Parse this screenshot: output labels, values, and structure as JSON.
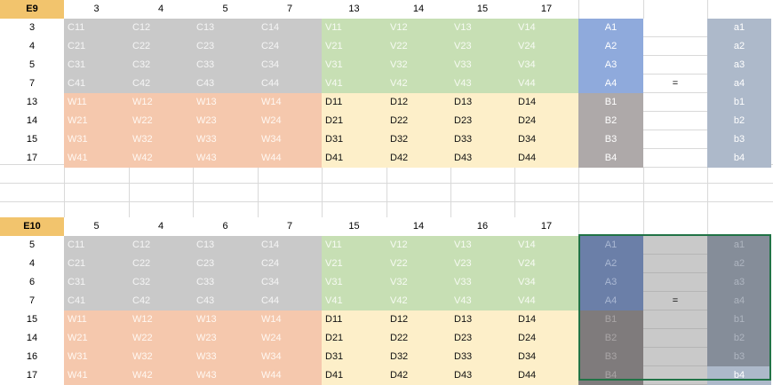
{
  "block1": {
    "corner": "E9",
    "col_headers": [
      "3",
      "4",
      "5",
      "7",
      "13",
      "14",
      "15",
      "17"
    ],
    "row_headers": [
      "3",
      "4",
      "5",
      "7",
      "13",
      "14",
      "15",
      "17"
    ],
    "q_gray": [
      [
        "C11",
        "C12",
        "C13",
        "C14"
      ],
      [
        "C21",
        "C22",
        "C23",
        "C24"
      ],
      [
        "C31",
        "C32",
        "C33",
        "C34"
      ],
      [
        "C41",
        "C42",
        "C43",
        "C44"
      ]
    ],
    "q_green": [
      [
        "V11",
        "V12",
        "V13",
        "V14"
      ],
      [
        "V21",
        "V22",
        "V23",
        "V24"
      ],
      [
        "V31",
        "V32",
        "V33",
        "V34"
      ],
      [
        "V41",
        "V42",
        "V43",
        "V44"
      ]
    ],
    "q_orange": [
      [
        "W11",
        "W12",
        "W13",
        "W14"
      ],
      [
        "W21",
        "W22",
        "W23",
        "W24"
      ],
      [
        "W31",
        "W32",
        "W33",
        "W34"
      ],
      [
        "W41",
        "W42",
        "W43",
        "W44"
      ]
    ],
    "q_yellow": [
      [
        "D11",
        "D12",
        "D13",
        "D14"
      ],
      [
        "D21",
        "D22",
        "D23",
        "D24"
      ],
      [
        "D31",
        "D32",
        "D33",
        "D34"
      ],
      [
        "D41",
        "D42",
        "D43",
        "D44"
      ]
    ],
    "vec_left": [
      "A1",
      "A2",
      "A3",
      "A4",
      "B1",
      "B2",
      "B3",
      "B4"
    ],
    "eq": "=",
    "vec_right": [
      "a1",
      "a2",
      "a3",
      "a4",
      "b1",
      "b2",
      "b3",
      "b4"
    ]
  },
  "block2": {
    "corner": "E10",
    "col_headers": [
      "5",
      "4",
      "6",
      "7",
      "15",
      "14",
      "16",
      "17"
    ],
    "row_headers": [
      "5",
      "4",
      "6",
      "7",
      "15",
      "14",
      "16",
      "17"
    ],
    "q_gray": [
      [
        "C11",
        "C12",
        "C13",
        "C14"
      ],
      [
        "C21",
        "C22",
        "C23",
        "C24"
      ],
      [
        "C31",
        "C32",
        "C33",
        "C34"
      ],
      [
        "C41",
        "C42",
        "C43",
        "C44"
      ]
    ],
    "q_green": [
      [
        "V11",
        "V12",
        "V13",
        "V14"
      ],
      [
        "V21",
        "V22",
        "V23",
        "V24"
      ],
      [
        "V31",
        "V32",
        "V33",
        "V34"
      ],
      [
        "V41",
        "V42",
        "V43",
        "V44"
      ]
    ],
    "q_orange": [
      [
        "W11",
        "W12",
        "W13",
        "W14"
      ],
      [
        "W21",
        "W22",
        "W23",
        "W24"
      ],
      [
        "W31",
        "W32",
        "W33",
        "W34"
      ],
      [
        "W41",
        "W42",
        "W43",
        "W44"
      ]
    ],
    "q_yellow": [
      [
        "D11",
        "D12",
        "D13",
        "D14"
      ],
      [
        "D21",
        "D22",
        "D23",
        "D24"
      ],
      [
        "D31",
        "D32",
        "D33",
        "D34"
      ],
      [
        "D41",
        "D42",
        "D43",
        "D44"
      ]
    ],
    "vec_left": [
      "A1",
      "A2",
      "A3",
      "A4",
      "B1",
      "B2",
      "B3",
      "B4"
    ],
    "eq": "=",
    "vec_right": [
      "a1",
      "a2",
      "a3",
      "a4",
      "b1",
      "b2",
      "b3",
      "b4"
    ]
  },
  "colors": {
    "corner": "#f2c46d",
    "gray": "#c9c9c9",
    "green": "#c7dfb4",
    "orange": "#f5c8ad",
    "yellow": "#fdefc9",
    "blue": "#8faadc",
    "gray_b": "#aea9a9",
    "slate": "#adb9ca",
    "selection_border": "#217346"
  }
}
